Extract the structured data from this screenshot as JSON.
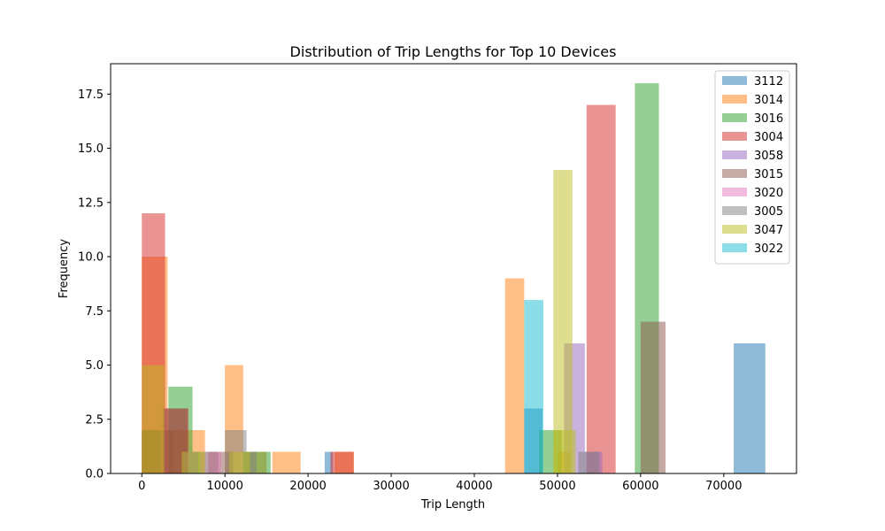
{
  "chart_data": {
    "type": "bar",
    "subtype": "overlapping-histogram",
    "title": "Distribution of Trip Lengths for Top 10 Devices",
    "xlabel": "Trip Length",
    "ylabel": "Frequency",
    "xlim": [
      -3750,
      78750
    ],
    "ylim": [
      0,
      18.9
    ],
    "xticks": [
      0,
      10000,
      20000,
      30000,
      40000,
      50000,
      60000,
      70000
    ],
    "xtick_labels": [
      "0",
      "10000",
      "20000",
      "30000",
      "40000",
      "50000",
      "60000",
      "70000"
    ],
    "yticks": [
      0,
      2.5,
      5,
      7.5,
      10,
      12.5,
      15,
      17.5
    ],
    "ytick_labels": [
      "0.0",
      "2.5",
      "5.0",
      "7.5",
      "10.0",
      "12.5",
      "15.0",
      "17.5"
    ],
    "grid": false,
    "legend_position": "upper right",
    "bar_opacity": 0.5,
    "series": [
      {
        "name": "3112",
        "color": "#1f77b4",
        "bins": [
          [
            0,
            3750,
            2
          ],
          [
            22000,
            23000,
            1
          ],
          [
            46000,
            48200,
            3
          ],
          [
            71200,
            75000,
            6
          ]
        ]
      },
      {
        "name": "3014",
        "color": "#ff7f0e",
        "bins": [
          [
            0,
            3100,
            10
          ],
          [
            3100,
            6300,
            2
          ],
          [
            6300,
            7600,
            2
          ],
          [
            10000,
            12200,
            5
          ],
          [
            12200,
            15000,
            1
          ],
          [
            15700,
            19100,
            1
          ],
          [
            23200,
            25500,
            1
          ],
          [
            43700,
            46000,
            9
          ],
          [
            50000,
            51500,
            1
          ]
        ]
      },
      {
        "name": "3016",
        "color": "#2ca02c",
        "bins": [
          [
            0,
            2300,
            2
          ],
          [
            3200,
            6100,
            4
          ],
          [
            6100,
            9200,
            1
          ],
          [
            12200,
            15500,
            1
          ],
          [
            47800,
            50500,
            2
          ],
          [
            59300,
            62200,
            18
          ]
        ]
      },
      {
        "name": "3004",
        "color": "#d62728",
        "bins": [
          [
            0,
            2800,
            12
          ],
          [
            2800,
            5600,
            3
          ],
          [
            22700,
            25500,
            1
          ],
          [
            53500,
            57000,
            17
          ]
        ]
      },
      {
        "name": "3058",
        "color": "#9467bd",
        "bins": [
          [
            5000,
            6800,
            1
          ],
          [
            50800,
            53300,
            6
          ],
          [
            53300,
            55400,
            1
          ]
        ]
      },
      {
        "name": "3015",
        "color": "#8c564b",
        "bins": [
          [
            2500,
            5500,
            3
          ],
          [
            8000,
            11000,
            1
          ],
          [
            60000,
            63000,
            7
          ]
        ]
      },
      {
        "name": "3020",
        "color": "#e377c2",
        "bins": [
          [
            7000,
            9500,
            1
          ]
        ]
      },
      {
        "name": "3005",
        "color": "#7f7f7f",
        "bins": [
          [
            10000,
            12600,
            2
          ],
          [
            12600,
            13800,
            1
          ],
          [
            52500,
            55000,
            1
          ]
        ]
      },
      {
        "name": "3047",
        "color": "#bcbd22",
        "bins": [
          [
            0,
            2700,
            5
          ],
          [
            4800,
            7600,
            1
          ],
          [
            10500,
            13000,
            1
          ],
          [
            49500,
            52200,
            2
          ],
          [
            49500,
            51800,
            14
          ]
        ]
      },
      {
        "name": "3022",
        "color": "#17becf",
        "bins": [
          [
            46000,
            48300,
            8
          ]
        ]
      }
    ]
  }
}
